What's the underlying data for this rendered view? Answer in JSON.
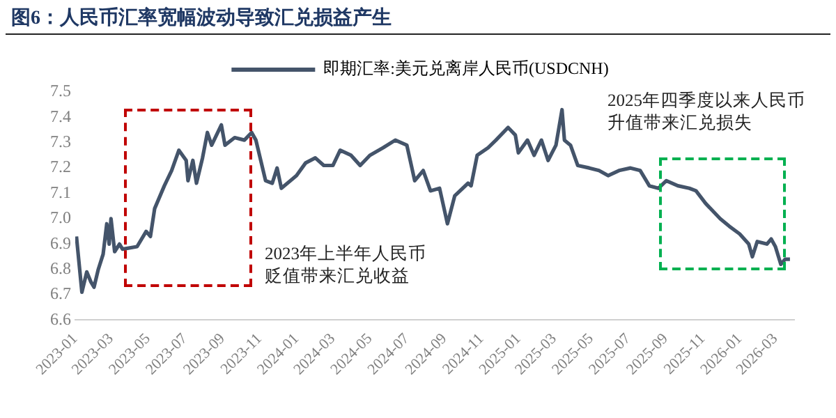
{
  "chart_data": {
    "type": "line",
    "title": "图6：人民币汇率宽幅波动导致汇兑损益产生",
    "x": [
      "2023-01-03",
      "2023-01-12",
      "2023-01-20",
      "2023-01-27",
      "2023-02-01",
      "2023-02-08",
      "2023-02-16",
      "2023-02-22",
      "2023-02-26",
      "2023-03-01",
      "2023-03-07",
      "2023-03-15",
      "2023-03-20",
      "2023-04-13",
      "2023-04-28",
      "2023-05-05",
      "2023-05-12",
      "2023-05-28",
      "2023-06-09",
      "2023-06-21",
      "2023-07-03",
      "2023-07-06",
      "2023-07-14",
      "2023-07-20",
      "2023-07-30",
      "2023-08-07",
      "2023-08-14",
      "2023-08-30",
      "2023-09-05",
      "2023-09-21",
      "2023-10-07",
      "2023-10-19",
      "2023-10-26",
      "2023-11-11",
      "2023-11-22",
      "2023-11-30",
      "2023-12-07",
      "2024-01-01",
      "2024-01-16",
      "2024-02-01",
      "2024-02-15",
      "2024-03-01",
      "2024-03-13",
      "2024-03-31",
      "2024-04-15",
      "2024-05-01",
      "2024-05-23",
      "2024-06-12",
      "2024-07-01",
      "2024-07-14",
      "2024-07-28",
      "2024-08-09",
      "2024-08-24",
      "2024-09-06",
      "2024-09-18",
      "2024-10-10",
      "2024-10-15",
      "2024-10-25",
      "2024-11-12",
      "2024-11-25",
      "2024-12-15",
      "2024-12-27",
      "2025-01-01",
      "2025-01-16",
      "2025-01-27",
      "2025-02-08",
      "2025-02-19",
      "2025-03-04",
      "2025-03-14",
      "2025-03-18",
      "2025-03-28",
      "2025-04-09",
      "2025-04-28",
      "2025-05-14",
      "2025-05-29",
      "2025-06-16",
      "2025-07-05",
      "2025-07-21",
      "2025-08-05",
      "2025-08-20",
      "2025-09-02",
      "2025-09-21",
      "2025-10-10",
      "2025-10-21",
      "2025-11-06",
      "2025-11-30",
      "2025-12-15",
      "2026-01-01",
      "2026-01-16",
      "2026-01-22",
      "2026-01-30",
      "2026-02-15",
      "2026-02-22",
      "2026-03-01",
      "2026-03-10",
      "2026-03-17",
      "2026-03-25"
    ],
    "series": [
      {
        "name": "即期汇率:美元兑离岸人民币(USDCNH)",
        "color": "#44546a",
        "values": [
          6.93,
          6.71,
          6.79,
          6.75,
          6.73,
          6.8,
          6.86,
          6.98,
          6.9,
          7.0,
          6.87,
          6.9,
          6.88,
          6.89,
          6.95,
          6.93,
          7.04,
          7.13,
          7.19,
          7.27,
          7.23,
          7.15,
          7.23,
          7.14,
          7.24,
          7.34,
          7.29,
          7.37,
          7.29,
          7.32,
          7.31,
          7.34,
          7.31,
          7.15,
          7.14,
          7.2,
          7.12,
          7.17,
          7.22,
          7.24,
          7.21,
          7.21,
          7.27,
          7.25,
          7.21,
          7.25,
          7.28,
          7.31,
          7.29,
          7.15,
          7.19,
          7.11,
          7.12,
          6.98,
          7.09,
          7.14,
          7.13,
          7.25,
          7.28,
          7.31,
          7.36,
          7.33,
          7.26,
          7.31,
          7.25,
          7.31,
          7.23,
          7.29,
          7.43,
          7.31,
          7.29,
          7.21,
          7.2,
          7.19,
          7.17,
          7.19,
          7.2,
          7.19,
          7.13,
          7.12,
          7.15,
          7.13,
          7.12,
          7.11,
          7.06,
          7.0,
          6.97,
          6.94,
          6.9,
          6.85,
          6.91,
          6.9,
          6.92,
          6.89,
          6.82,
          6.84,
          6.84
        ]
      }
    ],
    "xlim": [
      "2023-01-01",
      "2026-04-01"
    ],
    "xticks": [
      "2023-01",
      "2023-03",
      "2023-05",
      "2023-07",
      "2023-09",
      "2023-11",
      "2024-01",
      "2024-03",
      "2024-05",
      "2024-07",
      "2024-09",
      "2024-11",
      "2025-01",
      "2025-03",
      "2025-05",
      "2025-07",
      "2025-09",
      "2025-11",
      "2026-01",
      "2026-03"
    ],
    "ylim": [
      6.6,
      7.5
    ],
    "yticks": [
      6.6,
      6.7,
      6.8,
      6.9,
      {
        "value": 7,
        "label": "7.0"
      },
      7.1,
      7.2,
      7.3,
      7.4,
      7.5
    ],
    "annotations": [
      "2023年上半年人民币贬值带来汇兑收益",
      "2025年四季度以来人民币升值带来汇兑损失"
    ],
    "legend": "top",
    "grid": false,
    "line_style": "solid",
    "marker": "none"
  }
}
